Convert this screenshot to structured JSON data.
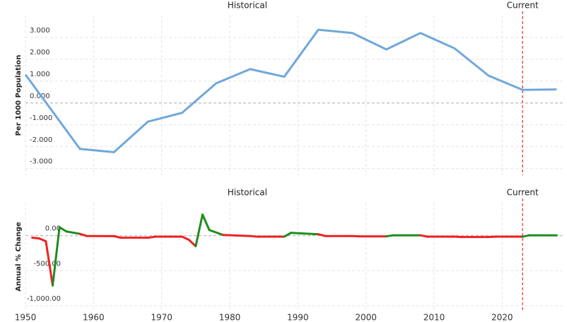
{
  "chart_data": [
    {
      "type": "line",
      "ylabel": "Per 1000 Population",
      "annotations": [
        {
          "text": "Historical"
        },
        {
          "text": "Current"
        }
      ],
      "current_year": 2023,
      "x": [
        1950,
        1958,
        1963,
        1968,
        1973,
        1978,
        1983,
        1988,
        1993,
        1998,
        2003,
        2008,
        2013,
        2018,
        2023,
        2028
      ],
      "series": [
        {
          "color": "#6fa8dc",
          "values": [
            1.3,
            -2.1,
            -2.25,
            -0.85,
            -0.45,
            0.9,
            1.55,
            1.2,
            3.35,
            3.2,
            2.45,
            3.2,
            2.5,
            1.25,
            0.6,
            0.62
          ]
        }
      ],
      "xlim": [
        1950,
        2029
      ],
      "ylim": [
        -3.3,
        4.0
      ],
      "yticks": [
        {
          "value": 3,
          "label": "3.000"
        },
        {
          "value": 2,
          "label": "2.000"
        },
        {
          "value": 1,
          "label": "1.000"
        },
        {
          "value": 0,
          "label": "0.000"
        },
        {
          "value": -1,
          "label": "-1.000"
        },
        {
          "value": -2,
          "label": "-2.000"
        },
        {
          "value": -3,
          "label": "-3.000"
        }
      ],
      "xticks": [
        1950,
        1960,
        1970,
        1980,
        1990,
        2000,
        2010,
        2020
      ],
      "grid": true
    },
    {
      "type": "signed-line",
      "ylabel": "Annual % Change",
      "annotations": [
        {
          "text": "Historical"
        },
        {
          "text": "Current"
        }
      ],
      "current_year": 2023,
      "positive_color": "#1e8c1e",
      "negative_color": "#ee2222",
      "x": [
        1951,
        1952,
        1953,
        1954,
        1955,
        1956,
        1958,
        1959,
        1963,
        1964,
        1968,
        1969,
        1973,
        1974,
        1975,
        1976,
        1977,
        1979,
        1983,
        1984,
        1988,
        1989,
        1993,
        1994,
        1998,
        1999,
        2003,
        2004,
        2008,
        2009,
        2013,
        2014,
        2018,
        2019,
        2023,
        2024,
        2028
      ],
      "values": [
        -30,
        -40,
        -80,
        -710,
        120,
        60,
        25,
        -5,
        -7,
        -30,
        -30,
        -15,
        -15,
        -60,
        -150,
        300,
        80,
        10,
        -5,
        -15,
        -15,
        40,
        20,
        -5,
        -5,
        -10,
        -10,
        5,
        5,
        -15,
        -15,
        -20,
        -20,
        -15,
        -15,
        5,
        5
      ],
      "xlim": [
        1950,
        2029
      ],
      "ylim": [
        -1070,
        470
      ],
      "yticks": [
        {
          "value": 0,
          "label": "0.00"
        },
        {
          "value": -500,
          "label": "-500.00"
        },
        {
          "value": -1000,
          "label": "-1,000.00"
        }
      ],
      "xticks": [
        {
          "value": 1950,
          "label": "1950"
        },
        {
          "value": 1960,
          "label": "1960"
        },
        {
          "value": 1970,
          "label": "1970"
        },
        {
          "value": 1980,
          "label": "1980"
        },
        {
          "value": 1990,
          "label": "1990"
        },
        {
          "value": 2000,
          "label": "2000"
        },
        {
          "value": 2010,
          "label": "2010"
        },
        {
          "value": 2020,
          "label": "2020"
        }
      ],
      "grid": true
    }
  ]
}
